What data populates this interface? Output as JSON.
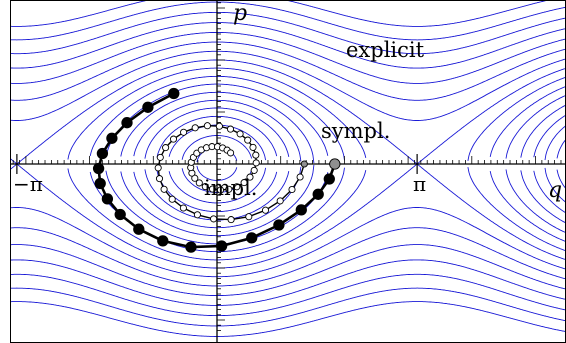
{
  "labels": {
    "p_axis": "p",
    "q_axis": "q",
    "neg_pi": "−π",
    "pi": "π",
    "explicit": "explicit",
    "symplectic": "sympl.",
    "implicit": "impl."
  },
  "colors": {
    "level_curves": "#1a1ad6",
    "trajectory": "#000000",
    "marker_hollow": "#ffffff",
    "marker_filled": "#000000",
    "marker_gray": "#909090",
    "axes": "#000000"
  },
  "domain": {
    "q": [
      -3.9,
      6.3
    ],
    "p": [
      -3.2,
      3.1
    ]
  },
  "level_energies": [
    -0.95,
    -0.85,
    -0.72,
    -0.58,
    -0.42,
    -0.25,
    -0.05,
    0.18,
    0.42,
    0.7,
    1.0,
    1.35,
    1.75,
    2.2,
    2.7,
    3.25,
    3.85,
    4.5
  ],
  "trajectories": {
    "explicit": {
      "q0": -3.32,
      "p0": 0.1,
      "step": 0.2,
      "steps": 44,
      "start_q": -3.06
    },
    "symplectic": {
      "q0": 1.85,
      "p0": 0.0,
      "step": 0.3,
      "steps": 18
    },
    "implicit": {
      "q0": 1.37,
      "p0": 0.0,
      "step": 0.26,
      "steps": 48
    }
  }
}
